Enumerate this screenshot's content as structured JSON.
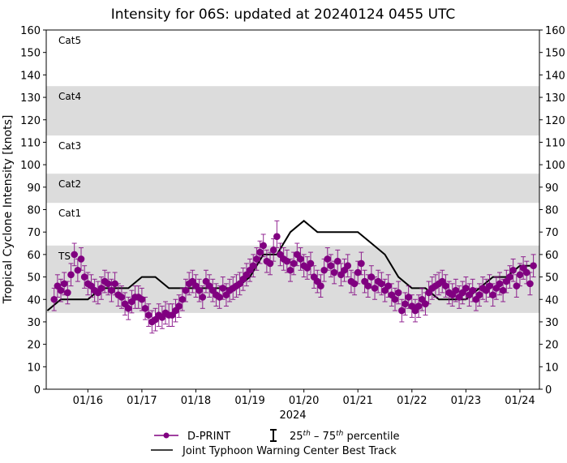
{
  "chart_data": {
    "type": "scatter",
    "title": "Intensity for 06S: updated at 20240124 0455 UTC",
    "xlabel": "2024",
    "ylabel": "Tropical Cyclone Intensity [knots]",
    "ylim": [
      0,
      160
    ],
    "yticks": [
      0,
      10,
      20,
      30,
      40,
      50,
      60,
      70,
      80,
      90,
      100,
      110,
      120,
      130,
      140,
      150,
      160
    ],
    "xlim": [
      "01/15 05:30",
      "01/24 08:40"
    ],
    "xticks": [
      "01/16",
      "01/17",
      "01/18",
      "01/19",
      "01/20",
      "01/21",
      "01/22",
      "01/23",
      "01/24"
    ],
    "grid": false,
    "right_axis": true,
    "legend_placement": "bottom-center",
    "category_bands": [
      {
        "label": "TS",
        "min": 34,
        "max": 64,
        "shaded": true
      },
      {
        "label": "Cat1",
        "min": 64,
        "max": 83,
        "shaded": false
      },
      {
        "label": "Cat2",
        "min": 83,
        "max": 96,
        "shaded": true
      },
      {
        "label": "Cat3",
        "min": 96,
        "max": 113,
        "shaded": false
      },
      {
        "label": "Cat4",
        "min": 113,
        "max": 135,
        "shaded": true
      },
      {
        "label": "Cat5",
        "min": 135,
        "max": 160,
        "shaded": false
      }
    ],
    "colors": {
      "dprint": "#800080",
      "best_track": "#000000",
      "band": "#dcdcdc"
    },
    "legend": {
      "dprint": "D-PRINT",
      "percentile_pre": "25",
      "percentile_sup1": "th",
      "percentile_mid": " – 75",
      "percentile_sup2": "th",
      "percentile_post": " percentile",
      "best_track": "Joint Typhoon Warning Center Best Track"
    },
    "series": [
      {
        "name": "D-PRINT",
        "type": "scatter-errorbar",
        "times": [
          "01/15 09:00",
          "01/15 10:30",
          "01/15 12:00",
          "01/15 13:30",
          "01/15 15:00",
          "01/15 16:30",
          "01/15 18:00",
          "01/15 19:30",
          "01/15 21:00",
          "01/15 22:30",
          "01/16 00:00",
          "01/16 01:30",
          "01/16 03:00",
          "01/16 04:30",
          "01/16 06:00",
          "01/16 07:30",
          "01/16 09:00",
          "01/16 10:30",
          "01/16 12:00",
          "01/16 13:30",
          "01/16 15:00",
          "01/16 16:30",
          "01/16 18:00",
          "01/16 19:30",
          "01/16 21:00",
          "01/16 22:30",
          "01/17 00:00",
          "01/17 01:30",
          "01/17 03:00",
          "01/17 04:30",
          "01/17 06:00",
          "01/17 07:30",
          "01/17 09:00",
          "01/17 10:30",
          "01/17 12:00",
          "01/17 13:30",
          "01/17 15:00",
          "01/17 16:30",
          "01/17 18:00",
          "01/17 19:30",
          "01/17 21:00",
          "01/17 22:30",
          "01/18 00:00",
          "01/18 01:30",
          "01/18 03:00",
          "01/18 04:30",
          "01/18 06:00",
          "01/18 07:30",
          "01/18 09:00",
          "01/18 10:30",
          "01/18 12:00",
          "01/18 13:30",
          "01/18 15:00",
          "01/18 16:30",
          "01/18 18:00",
          "01/18 19:30",
          "01/18 21:00",
          "01/18 22:30",
          "01/19 00:00",
          "01/19 01:30",
          "01/19 03:00",
          "01/19 04:30",
          "01/19 06:00",
          "01/19 07:30",
          "01/19 09:00",
          "01/19 10:30",
          "01/19 12:00",
          "01/19 13:30",
          "01/19 15:00",
          "01/19 16:30",
          "01/19 18:00",
          "01/19 19:30",
          "01/19 21:00",
          "01/19 22:30",
          "01/20 00:00",
          "01/20 01:30",
          "01/20 03:00",
          "01/20 04:30",
          "01/20 06:00",
          "01/20 07:30",
          "01/20 09:00",
          "01/20 10:30",
          "01/20 12:00",
          "01/20 13:30",
          "01/20 15:00",
          "01/20 16:30",
          "01/20 18:00",
          "01/20 19:30",
          "01/20 21:00",
          "01/20 22:30",
          "01/21 00:00",
          "01/21 01:30",
          "01/21 03:00",
          "01/21 04:30",
          "01/21 06:00",
          "01/21 07:30",
          "01/21 09:00",
          "01/21 10:30",
          "01/21 12:00",
          "01/21 13:30",
          "01/21 15:00",
          "01/21 16:30",
          "01/21 18:00",
          "01/21 19:30",
          "01/21 21:00",
          "01/21 22:30",
          "01/22 00:00",
          "01/22 01:30",
          "01/22 03:00",
          "01/22 04:30",
          "01/22 06:00",
          "01/22 07:30",
          "01/22 09:00",
          "01/22 10:30",
          "01/22 12:00",
          "01/22 13:30",
          "01/22 15:00",
          "01/22 16:30",
          "01/22 18:00",
          "01/22 19:30",
          "01/22 21:00",
          "01/22 22:30",
          "01/23 00:00",
          "01/23 01:30",
          "01/23 03:00",
          "01/23 04:30",
          "01/23 06:00",
          "01/23 07:30",
          "01/23 09:00",
          "01/23 10:30",
          "01/23 12:00",
          "01/23 13:30",
          "01/23 15:00",
          "01/23 16:30",
          "01/23 18:00",
          "01/23 19:30",
          "01/23 21:00",
          "01/23 22:30",
          "01/24 00:00",
          "01/24 01:30",
          "01/24 03:00",
          "01/24 04:30",
          "01/24 06:00"
        ],
        "values": [
          40,
          46,
          44,
          47,
          43,
          51,
          60,
          53,
          58,
          50,
          47,
          46,
          44,
          43,
          45,
          48,
          47,
          44,
          47,
          42,
          41,
          38,
          36,
          39,
          41,
          41,
          40,
          36,
          33,
          30,
          31,
          33,
          32,
          34,
          33,
          33,
          35,
          37,
          40,
          44,
          47,
          48,
          46,
          44,
          41,
          48,
          46,
          44,
          42,
          41,
          45,
          42,
          44,
          45,
          46,
          47,
          49,
          51,
          53,
          55,
          58,
          61,
          64,
          57,
          56,
          62,
          68,
          60,
          58,
          57,
          53,
          56,
          60,
          58,
          55,
          54,
          56,
          50,
          48,
          46,
          53,
          58,
          55,
          52,
          57,
          51,
          53,
          55,
          48,
          47,
          52,
          56,
          48,
          46,
          50,
          45,
          48,
          47,
          44,
          46,
          42,
          40,
          43,
          35,
          38,
          41,
          37,
          35,
          37,
          40,
          38,
          43,
          45,
          46,
          47,
          48,
          46,
          43,
          42,
          44,
          41,
          43,
          45,
          42,
          44,
          40,
          42,
          45,
          44,
          46,
          42,
          45,
          47,
          44,
          48,
          50,
          53,
          46,
          51,
          54,
          52,
          47,
          55
        ],
        "p25": [
          35,
          41,
          39,
          42,
          38,
          46,
          55,
          48,
          53,
          45,
          42,
          41,
          39,
          38,
          40,
          43,
          42,
          39,
          42,
          37,
          36,
          33,
          31,
          34,
          36,
          36,
          35,
          31,
          28,
          25,
          26,
          28,
          27,
          29,
          28,
          28,
          30,
          32,
          35,
          39,
          42,
          43,
          41,
          39,
          36,
          43,
          41,
          39,
          37,
          36,
          40,
          37,
          39,
          40,
          41,
          42,
          44,
          46,
          48,
          50,
          53,
          56,
          59,
          52,
          51,
          57,
          63,
          55,
          53,
          52,
          48,
          51,
          55,
          53,
          50,
          49,
          51,
          45,
          43,
          41,
          48,
          53,
          50,
          47,
          52,
          46,
          48,
          50,
          43,
          42,
          47,
          51,
          43,
          41,
          45,
          40,
          43,
          42,
          39,
          41,
          37,
          35,
          38,
          30,
          33,
          36,
          32,
          30,
          32,
          35,
          33,
          38,
          40,
          41,
          42,
          43,
          41,
          38,
          37,
          39,
          36,
          38,
          40,
          37,
          39,
          35,
          37,
          40,
          39,
          41,
          37,
          40,
          42,
          39,
          43,
          45,
          48,
          41,
          46,
          49,
          47,
          42,
          50
        ],
        "p75": [
          45,
          51,
          49,
          52,
          48,
          56,
          65,
          58,
          63,
          55,
          52,
          51,
          49,
          48,
          50,
          53,
          52,
          49,
          52,
          47,
          46,
          43,
          41,
          44,
          46,
          46,
          45,
          41,
          38,
          35,
          36,
          38,
          37,
          39,
          38,
          38,
          40,
          42,
          45,
          49,
          52,
          53,
          51,
          49,
          46,
          53,
          51,
          49,
          47,
          46,
          50,
          47,
          49,
          50,
          51,
          52,
          54,
          56,
          58,
          60,
          63,
          66,
          69,
          62,
          61,
          67,
          75,
          65,
          63,
          62,
          58,
          61,
          65,
          63,
          60,
          59,
          61,
          55,
          53,
          51,
          58,
          63,
          60,
          57,
          62,
          56,
          58,
          60,
          53,
          52,
          57,
          61,
          53,
          51,
          55,
          50,
          53,
          52,
          49,
          51,
          47,
          45,
          48,
          40,
          43,
          46,
          42,
          40,
          42,
          45,
          43,
          48,
          50,
          51,
          52,
          53,
          51,
          48,
          47,
          49,
          46,
          48,
          50,
          47,
          49,
          45,
          47,
          50,
          49,
          51,
          47,
          50,
          52,
          49,
          53,
          55,
          58,
          51,
          56,
          59,
          57,
          52,
          60
        ]
      },
      {
        "name": "Joint Typhoon Warning Center Best Track",
        "type": "line",
        "times": [
          "01/15 06:00",
          "01/15 12:00",
          "01/15 18:00",
          "01/16 00:00",
          "01/16 06:00",
          "01/16 12:00",
          "01/16 18:00",
          "01/17 00:00",
          "01/17 06:00",
          "01/17 12:00",
          "01/17 18:00",
          "01/18 00:00",
          "01/18 06:00",
          "01/18 12:00",
          "01/18 18:00",
          "01/19 00:00",
          "01/19 06:00",
          "01/19 12:00",
          "01/19 18:00",
          "01/20 00:00",
          "01/20 06:00",
          "01/20 12:00",
          "01/20 18:00",
          "01/21 00:00",
          "01/21 06:00",
          "01/21 12:00",
          "01/21 18:00",
          "01/22 00:00",
          "01/22 06:00",
          "01/22 12:00",
          "01/22 18:00",
          "01/23 00:00",
          "01/23 06:00",
          "01/23 12:00",
          "01/23 18:00",
          "01/24 00:00",
          "01/24 06:00"
        ],
        "values": [
          35,
          40,
          40,
          40,
          45,
          45,
          45,
          50,
          50,
          45,
          45,
          45,
          45,
          45,
          45,
          50,
          60,
          60,
          70,
          75,
          70,
          70,
          70,
          70,
          65,
          60,
          50,
          45,
          45,
          40,
          40,
          40,
          45,
          50,
          50,
          55,
          55
        ]
      }
    ]
  }
}
